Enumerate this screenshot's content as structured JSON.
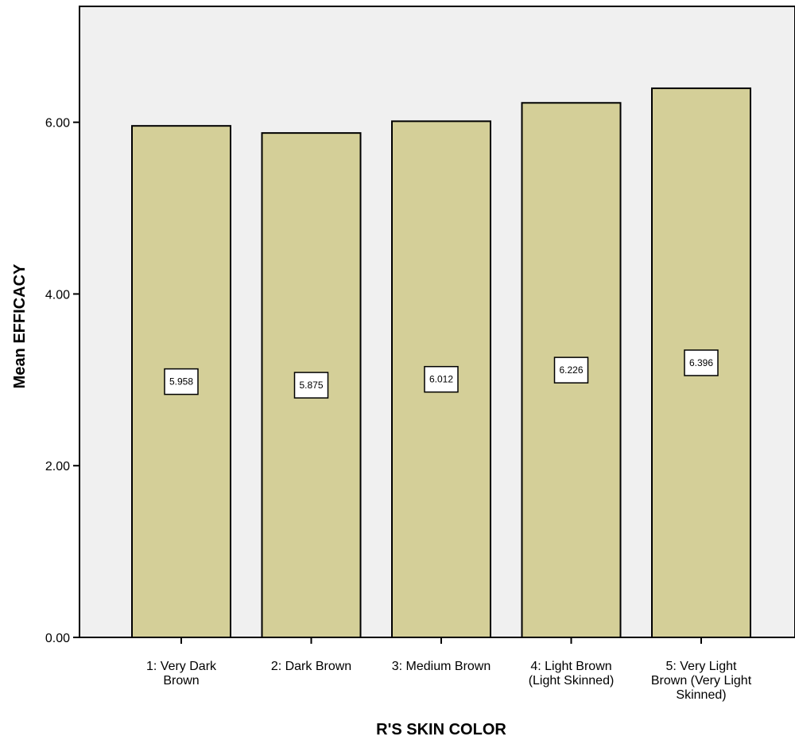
{
  "chart_data": {
    "type": "bar",
    "categories": [
      [
        "1: Very Dark",
        "Brown"
      ],
      [
        "2: Dark Brown"
      ],
      [
        "3: Medium Brown"
      ],
      [
        "4: Light Brown",
        "(Light Skinned)"
      ],
      [
        "5: Very Light",
        "Brown (Very Light",
        "Skinned)"
      ]
    ],
    "values": [
      5.958,
      5.875,
      6.012,
      6.226,
      6.396
    ],
    "data_labels": [
      "5.958",
      "5.875",
      "6.012",
      "6.226",
      "6.396"
    ],
    "xlabel": "R'S SKIN COLOR",
    "ylabel": "Mean EFFICACY",
    "ylim": [
      0,
      7.35
    ],
    "yticks": [
      0,
      2,
      4,
      6
    ],
    "ytick_labels": [
      "0.00",
      "2.00",
      "4.00",
      "6.00"
    ],
    "grid": false,
    "colors": {
      "bar_fill": "#d4cf98",
      "bar_stroke": "#000000",
      "plot_background": "#f0f0f0",
      "data_label_background": "#ffffff"
    }
  }
}
